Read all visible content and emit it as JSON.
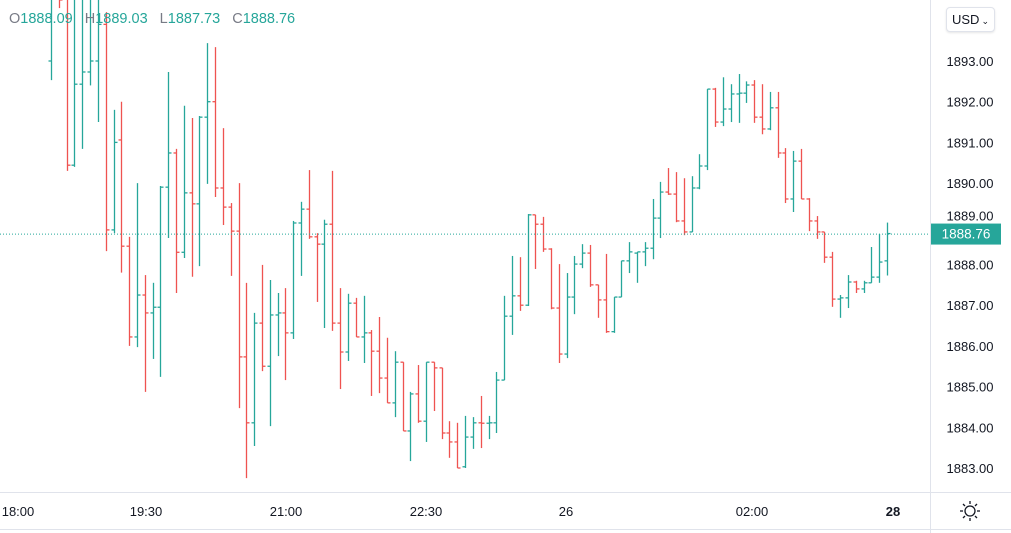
{
  "legend": {
    "o_label": "O",
    "o": "1888.09",
    "h_label": "H",
    "h": "1889.03",
    "l_label": "L",
    "l": "1887.73",
    "c_label": "C",
    "c": "1888.76"
  },
  "currency_button": {
    "label": "USD",
    "icon": "chevron-down-icon"
  },
  "settings_icon": "sun-settings-icon",
  "colors": {
    "up": "#26a69a",
    "down": "#ef5350",
    "last_price_tag": "#26a69a",
    "axis_text": "#131722"
  },
  "chart_data": {
    "type": "ohlc",
    "title": "",
    "ylim": [
      1882.3,
      1894.5
    ],
    "y_ticks": [
      "1883.00",
      "1884.00",
      "1885.00",
      "1886.00",
      "1887.00",
      "1888.00",
      "1889.00",
      "1890.00",
      "1891.00",
      "1892.00",
      "1893.00"
    ],
    "x_ticks": [
      "18:00",
      "19:30",
      "21:00",
      "22:30",
      "26",
      "02:00",
      "28"
    ],
    "last_price": "1888.76",
    "grid": false,
    "bars": [
      [
        1893.0,
        1895.2,
        1892.53,
        1894.8
      ],
      [
        1895.3,
        1895.6,
        1894.3,
        1894.5
      ],
      [
        1894.6,
        1895.0,
        1890.3,
        1890.44
      ],
      [
        1890.44,
        1894.8,
        1890.4,
        1892.43
      ],
      [
        1892.43,
        1894.7,
        1890.84,
        1892.73
      ],
      [
        1892.73,
        1894.9,
        1892.4,
        1893.0
      ],
      [
        1893.0,
        1894.8,
        1891.5,
        1893.9
      ],
      [
        1893.9,
        1894.2,
        1888.33,
        1888.85
      ],
      [
        1888.85,
        1891.8,
        1888.77,
        1891.0
      ],
      [
        1891.06,
        1892.0,
        1887.8,
        1888.45
      ],
      [
        1888.45,
        1888.68,
        1886.0,
        1886.22
      ],
      [
        1886.22,
        1890.0,
        1885.97,
        1887.25
      ],
      [
        1887.25,
        1887.74,
        1884.87,
        1886.81
      ],
      [
        1886.81,
        1887.55,
        1885.68,
        1886.95
      ],
      [
        1886.95,
        1889.93,
        1885.24,
        1889.9
      ],
      [
        1889.9,
        1892.73,
        1888.65,
        1890.74
      ],
      [
        1890.74,
        1890.84,
        1887.3,
        1888.3
      ],
      [
        1888.3,
        1891.9,
        1888.16,
        1889.76
      ],
      [
        1889.76,
        1891.6,
        1887.7,
        1889.49
      ],
      [
        1889.49,
        1891.65,
        1887.96,
        1891.62
      ],
      [
        1891.62,
        1893.44,
        1889.98,
        1892.0
      ],
      [
        1892.0,
        1893.34,
        1889.66,
        1889.88
      ],
      [
        1889.88,
        1891.35,
        1888.97,
        1889.41
      ],
      [
        1889.41,
        1889.51,
        1887.72,
        1888.82
      ],
      [
        1888.82,
        1890.0,
        1884.47,
        1885.73
      ],
      [
        1885.73,
        1887.55,
        1882.75,
        1884.11
      ],
      [
        1884.11,
        1886.81,
        1883.54,
        1886.56
      ],
      [
        1886.56,
        1887.99,
        1885.38,
        1885.5
      ],
      [
        1885.5,
        1887.62,
        1884.03,
        1886.76
      ],
      [
        1886.76,
        1887.3,
        1885.75,
        1886.81
      ],
      [
        1886.81,
        1887.42,
        1885.16,
        1886.32
      ],
      [
        1886.32,
        1889.07,
        1886.17,
        1889.02
      ],
      [
        1889.02,
        1889.54,
        1887.72,
        1889.36
      ],
      [
        1889.36,
        1890.32,
        1888.63,
        1888.68
      ],
      [
        1888.68,
        1888.77,
        1887.08,
        1888.5
      ],
      [
        1888.5,
        1889.1,
        1886.44,
        1888.99
      ],
      [
        1888.99,
        1890.3,
        1886.37,
        1886.56
      ],
      [
        1886.56,
        1887.42,
        1884.94,
        1885.85
      ],
      [
        1885.85,
        1887.28,
        1885.63,
        1887.05
      ],
      [
        1887.05,
        1887.18,
        1886.22,
        1886.22
      ],
      [
        1886.22,
        1887.23,
        1885.58,
        1886.32
      ],
      [
        1886.32,
        1886.39,
        1884.77,
        1885.87
      ],
      [
        1885.87,
        1886.71,
        1884.84,
        1885.21
      ],
      [
        1885.21,
        1886.2,
        1884.6,
        1884.6
      ],
      [
        1884.6,
        1885.87,
        1884.25,
        1885.6
      ],
      [
        1885.6,
        1885.6,
        1883.91,
        1883.91
      ],
      [
        1883.91,
        1884.87,
        1883.17,
        1884.82
      ],
      [
        1884.82,
        1885.53,
        1884.11,
        1884.15
      ],
      [
        1884.15,
        1885.6,
        1883.64,
        1885.6
      ],
      [
        1885.6,
        1885.6,
        1884.4,
        1885.46
      ],
      [
        1885.46,
        1885.46,
        1883.71,
        1883.86
      ],
      [
        1883.86,
        1884.15,
        1883.25,
        1883.64
      ],
      [
        1883.64,
        1884.11,
        1883.0,
        1883.0
      ],
      [
        1883.03,
        1884.28,
        1883.0,
        1883.76
      ],
      [
        1883.76,
        1884.25,
        1883.47,
        1884.11
      ],
      [
        1884.11,
        1884.77,
        1883.49,
        1884.1
      ],
      [
        1884.1,
        1884.28,
        1883.71,
        1884.11
      ],
      [
        1884.11,
        1885.36,
        1883.86,
        1885.16
      ],
      [
        1885.16,
        1887.23,
        1885.16,
        1886.73
      ],
      [
        1886.73,
        1888.21,
        1886.27,
        1887.23
      ],
      [
        1887.23,
        1888.18,
        1886.86,
        1887.0
      ],
      [
        1887.0,
        1889.24,
        1886.98,
        1889.22
      ],
      [
        1889.22,
        1889.22,
        1887.89,
        1888.99
      ],
      [
        1888.99,
        1889.17,
        1888.31,
        1888.38
      ],
      [
        1888.38,
        1888.4,
        1886.9,
        1886.93
      ],
      [
        1886.93,
        1888.01,
        1885.58,
        1885.8
      ],
      [
        1885.8,
        1887.79,
        1885.7,
        1887.2
      ],
      [
        1887.2,
        1888.21,
        1886.78,
        1888.01
      ],
      [
        1888.01,
        1888.5,
        1887.91,
        1888.28
      ],
      [
        1888.28,
        1888.48,
        1887.45,
        1887.5
      ],
      [
        1887.5,
        1887.5,
        1886.69,
        1887.13
      ],
      [
        1887.13,
        1888.26,
        1886.32,
        1886.35
      ],
      [
        1886.35,
        1887.2,
        1886.32,
        1887.2
      ],
      [
        1887.2,
        1888.09,
        1887.2,
        1888.09
      ],
      [
        1888.09,
        1888.55,
        1887.79,
        1888.31
      ],
      [
        1888.28,
        1888.31,
        1887.55,
        1888.31
      ],
      [
        1888.31,
        1888.55,
        1887.96,
        1888.4
      ],
      [
        1888.4,
        1889.61,
        1888.13,
        1889.14
      ],
      [
        1889.14,
        1890.03,
        1888.65,
        1889.78
      ],
      [
        1889.78,
        1890.37,
        1889.71,
        1889.73
      ],
      [
        1889.73,
        1890.27,
        1889.04,
        1889.07
      ],
      [
        1889.07,
        1890.12,
        1888.72,
        1888.8
      ],
      [
        1888.8,
        1890.17,
        1888.8,
        1889.88
      ],
      [
        1889.88,
        1890.71,
        1889.85,
        1890.42
      ],
      [
        1890.42,
        1892.31,
        1890.32,
        1892.31
      ],
      [
        1892.31,
        1892.34,
        1891.38,
        1891.5
      ],
      [
        1891.5,
        1892.6,
        1891.4,
        1891.82
      ],
      [
        1891.82,
        1892.43,
        1891.5,
        1892.19
      ],
      [
        1892.19,
        1892.68,
        1891.48,
        1892.21
      ],
      [
        1892.21,
        1892.5,
        1891.97,
        1892.41
      ],
      [
        1892.41,
        1892.53,
        1891.48,
        1891.62
      ],
      [
        1891.62,
        1892.43,
        1891.2,
        1891.33
      ],
      [
        1891.33,
        1892.24,
        1891.3,
        1891.85
      ],
      [
        1891.85,
        1892.24,
        1890.62,
        1890.74
      ],
      [
        1890.74,
        1890.86,
        1889.51,
        1889.61
      ],
      [
        1889.61,
        1890.79,
        1889.29,
        1890.54
      ],
      [
        1890.54,
        1890.84,
        1889.61,
        1889.61
      ],
      [
        1889.61,
        1889.63,
        1888.82,
        1889.07
      ],
      [
        1889.07,
        1889.19,
        1888.63,
        1888.8
      ],
      [
        1888.8,
        1888.8,
        1888.04,
        1888.18
      ],
      [
        1888.18,
        1888.31,
        1886.96,
        1887.15
      ],
      [
        1887.15,
        1887.25,
        1886.69,
        1887.18
      ],
      [
        1887.18,
        1887.74,
        1886.93,
        1887.57
      ],
      [
        1887.57,
        1887.6,
        1887.3,
        1887.4
      ],
      [
        1887.4,
        1887.6,
        1887.3,
        1887.55
      ],
      [
        1887.55,
        1888.43,
        1887.55,
        1887.69
      ],
      [
        1887.69,
        1888.75,
        1887.55,
        1888.06
      ],
      [
        1888.09,
        1889.03,
        1887.73,
        1888.76
      ]
    ]
  }
}
